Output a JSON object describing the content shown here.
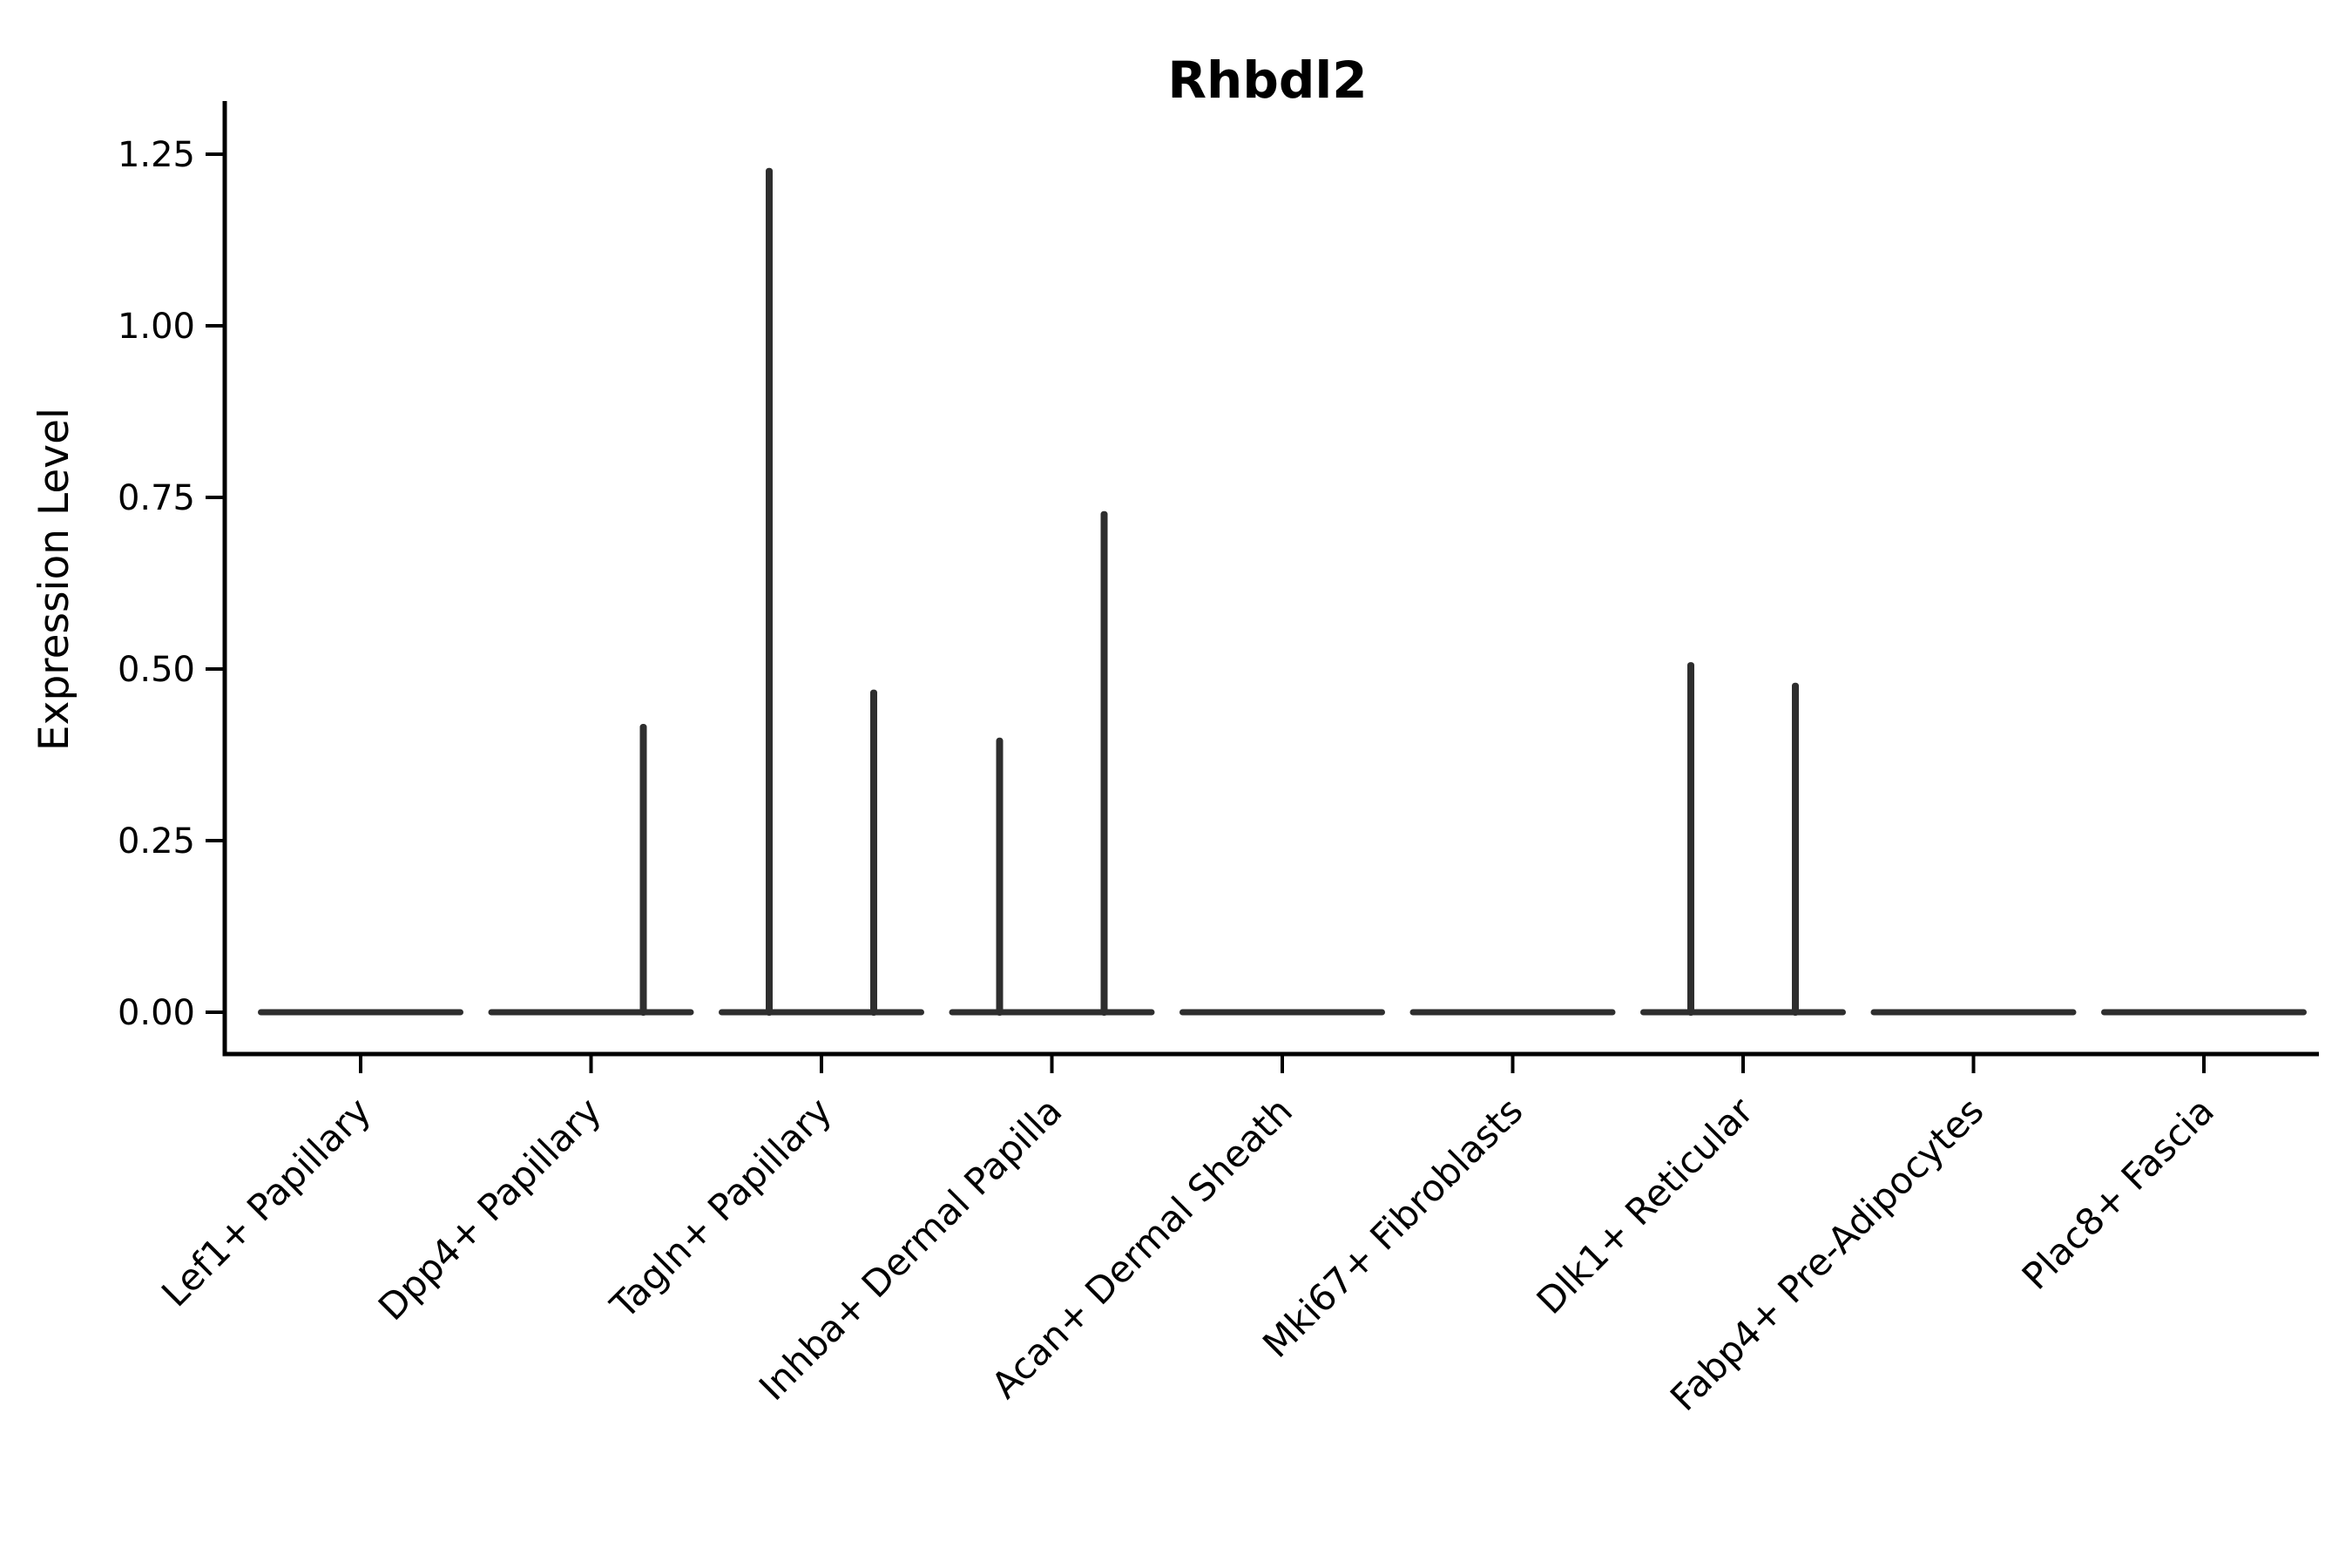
{
  "figure": {
    "background_color": "#ffffff",
    "violin_color": "#2e2e2e",
    "axis_color": "#000000"
  },
  "chart_data": {
    "type": "violin",
    "title": "Rhbdl2",
    "xlabel": "",
    "ylabel": "Expression Level",
    "ylim": [
      0,
      1.25
    ],
    "yticks": [
      "0.00",
      "0.25",
      "0.50",
      "0.75",
      "1.00",
      "1.25"
    ],
    "ytick_values": [
      0,
      0.25,
      0.5,
      0.75,
      1.0,
      1.25
    ],
    "grid": false,
    "legend": "none",
    "x_tick_rotation_degrees": 45,
    "categories": [
      "Lef1+ Papillary",
      "Dpp4+ Papillary",
      "Tagln+ Papillary",
      "Inhba+ Dermal Papilla",
      "Acan+ Dermal Sheath",
      "Mki67+ Fibroblasts",
      "Dlk1+ Reticular",
      "Fabp4+ Pre-Adipocytes",
      "Plac8+ Fascia"
    ],
    "violins": [
      {
        "label": "Lef1+ Papillary",
        "baseline_value": 0,
        "spikes": []
      },
      {
        "label": "Dpp4+ Papillary",
        "baseline_value": 0,
        "spikes": [
          {
            "side": "right",
            "max_value": 0.42
          }
        ]
      },
      {
        "label": "Tagln+ Papillary",
        "baseline_value": 0,
        "spikes": [
          {
            "side": "left",
            "max_value": 1.23
          },
          {
            "side": "right",
            "max_value": 0.47
          }
        ]
      },
      {
        "label": "Inhba+ Dermal Papilla",
        "baseline_value": 0,
        "spikes": [
          {
            "side": "left",
            "max_value": 0.4
          },
          {
            "side": "right",
            "max_value": 0.73
          }
        ]
      },
      {
        "label": "Acan+ Dermal Sheath",
        "baseline_value": 0,
        "spikes": []
      },
      {
        "label": "Mki67+ Fibroblasts",
        "baseline_value": 0,
        "spikes": []
      },
      {
        "label": "Dlk1+ Reticular",
        "baseline_value": 0,
        "spikes": [
          {
            "side": "left",
            "max_value": 0.51
          },
          {
            "side": "right",
            "max_value": 0.48
          }
        ]
      },
      {
        "label": "Fabp4+ Pre-Adipocytes",
        "baseline_value": 0,
        "spikes": []
      },
      {
        "label": "Plac8+ Fascia",
        "baseline_value": 0,
        "spikes": []
      }
    ]
  }
}
